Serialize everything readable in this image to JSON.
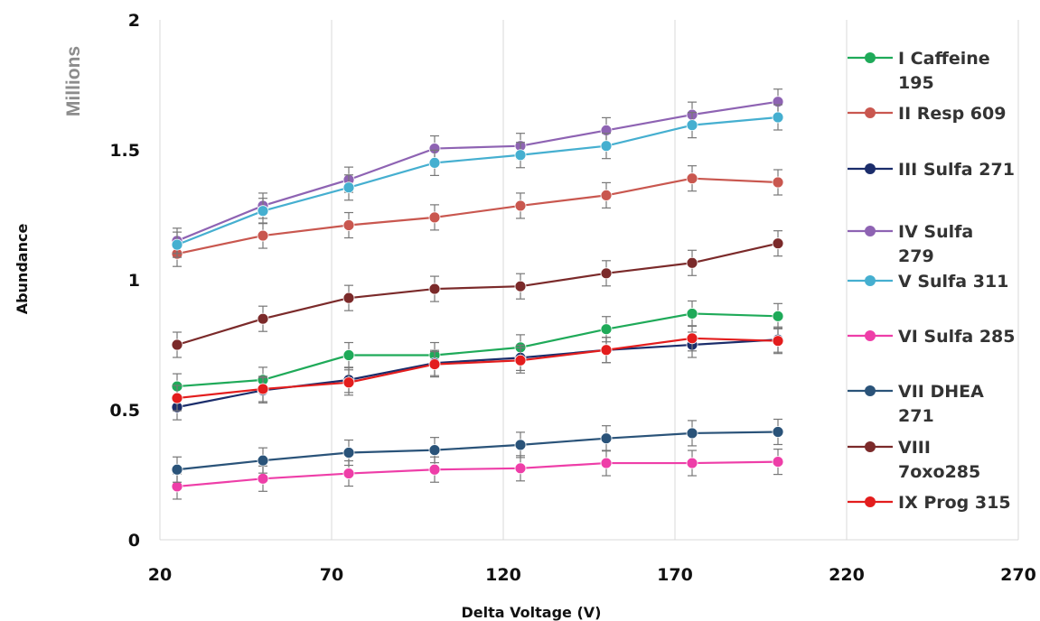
{
  "chart_data": {
    "type": "line",
    "title": "",
    "xlabel": "Delta Voltage (V)",
    "ylabel": "Abundance",
    "y_units": "Millions",
    "xlim": [
      20,
      270
    ],
    "ylim": [
      0,
      2
    ],
    "x_ticks": [
      "20",
      "70",
      "120",
      "170",
      "220",
      "270"
    ],
    "y_ticks": [
      "0",
      "0.5",
      "1",
      "1.5",
      "2"
    ],
    "x_tick_values": [
      20,
      70,
      120,
      170,
      220,
      270
    ],
    "y_tick_values": [
      0,
      0.5,
      1,
      1.5,
      2
    ],
    "grid": "vertical",
    "legend_position": "right",
    "x": [
      25,
      50,
      75,
      100,
      125,
      150,
      175,
      200
    ],
    "series": [
      {
        "name": "I Caffeine 195",
        "legend_lines": [
          "I Caffeine",
          "195"
        ],
        "color": "#1faa59",
        "values": [
          0.59,
          0.615,
          0.71,
          0.71,
          0.74,
          0.81,
          0.87,
          0.86
        ]
      },
      {
        "name": "II Resp 609",
        "legend_lines": [
          "II Resp  609"
        ],
        "color": "#c9574f",
        "values": [
          1.1,
          1.17,
          1.21,
          1.24,
          1.285,
          1.325,
          1.39,
          1.375
        ]
      },
      {
        "name": "III Sulfa 271",
        "legend_lines": [
          "III Sulfa 271"
        ],
        "color": "#1b2d6b",
        "values": [
          0.51,
          0.575,
          0.615,
          0.68,
          0.7,
          0.73,
          0.75,
          0.77
        ]
      },
      {
        "name": "IV Sulfa 279",
        "legend_lines": [
          "IV Sulfa",
          "279"
        ],
        "color": "#8e63b3",
        "values": [
          1.15,
          1.285,
          1.385,
          1.505,
          1.515,
          1.575,
          1.635,
          1.685
        ]
      },
      {
        "name": "V Sulfa 311",
        "legend_lines": [
          "V Sulfa 311"
        ],
        "color": "#45afd0",
        "values": [
          1.135,
          1.265,
          1.355,
          1.45,
          1.48,
          1.515,
          1.595,
          1.625
        ]
      },
      {
        "name": "VI Sulfa 285",
        "legend_lines": [
          "VI Sulfa 285"
        ],
        "color": "#ee3ea8",
        "values": [
          0.205,
          0.235,
          0.255,
          0.27,
          0.275,
          0.295,
          0.295,
          0.3
        ]
      },
      {
        "name": "VII DHEA 271",
        "legend_lines": [
          "VII DHEA",
          "271"
        ],
        "color": "#2a5379",
        "values": [
          0.27,
          0.305,
          0.335,
          0.345,
          0.365,
          0.39,
          0.41,
          0.415
        ]
      },
      {
        "name": "VIII 7oxo285",
        "legend_lines": [
          "VIII",
          "7oxo285"
        ],
        "color": "#7b2a2a",
        "values": [
          0.75,
          0.85,
          0.93,
          0.965,
          0.975,
          1.025,
          1.065,
          1.14
        ]
      },
      {
        "name": "IX Prog 315",
        "legend_lines": [
          "IX Prog 315"
        ],
        "color": "#e31d1d",
        "values": [
          0.545,
          0.58,
          0.605,
          0.675,
          0.69,
          0.73,
          0.775,
          0.765
        ]
      }
    ]
  }
}
